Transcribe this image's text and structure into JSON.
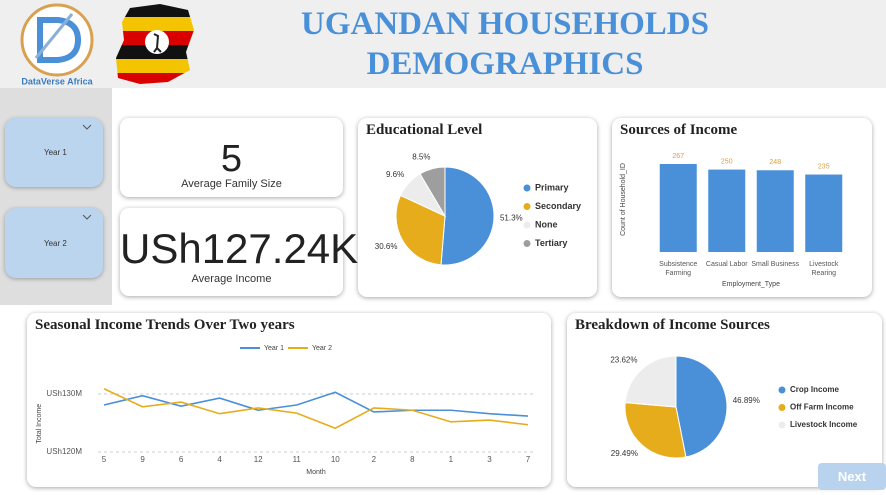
{
  "header": {
    "title": "UGANDAN HOUSEHOLDS DEMOGRAPHICS",
    "logo_text": "DataVerse Africa"
  },
  "slicers": [
    "Year 1",
    "Year 2"
  ],
  "kpis": [
    {
      "value": 5,
      "label": "Average Family Size"
    },
    {
      "value": "USh127.24K",
      "label": "Average Income"
    }
  ],
  "button": "Next",
  "chart_data": [
    {
      "type": "pie",
      "title": "Educational Level",
      "categories": [
        "Primary",
        "Secondary",
        "None",
        "Tertiary"
      ],
      "values": [
        51.3,
        30.6,
        9.6,
        8.5
      ],
      "value_labels": [
        "51.3%",
        "30.6%",
        "9.6%",
        "8.5%"
      ],
      "colors": [
        "#4a90d9",
        "#e6ac1c",
        "#ececec",
        "#9e9e9e"
      ],
      "legend": "right"
    },
    {
      "type": "bar",
      "title": "Sources of Income",
      "categories": [
        "Subsistence Farming",
        "Casual Labor",
        "Small Business",
        "Livestock Rearing"
      ],
      "values": [
        267,
        250,
        248,
        235
      ],
      "color": "#4a90d9",
      "label_color": "#d9a040",
      "xlabel": "Employment_Type",
      "ylabel": "Count of Household_ID",
      "ylim": [
        0,
        270
      ]
    },
    {
      "type": "line",
      "title": "Seasonal Income Trends Over Two years",
      "categories": [
        "5",
        "9",
        "6",
        "4",
        "12",
        "11",
        "10",
        "2",
        "8",
        "1",
        "3",
        "7"
      ],
      "series": [
        {
          "name": "Year 1",
          "color": "#4a90d9",
          "values": [
            128100000,
            129700000,
            127900000,
            129300000,
            127200000,
            128100000,
            130300000,
            126900000,
            127200000,
            127200000,
            126600000,
            126200000
          ]
        },
        {
          "name": "Year 2",
          "color": "#e6ac1c",
          "values": [
            130900000,
            127800000,
            128600000,
            126600000,
            127600000,
            126700000,
            124100000,
            127600000,
            127200000,
            125200000,
            125500000,
            124700000
          ]
        }
      ],
      "xlabel": "Month",
      "ylabel": "Total Income",
      "ylim": [
        120000000,
        132500000
      ],
      "yticks": [
        {
          "value": 120000000,
          "label": "USh120M"
        },
        {
          "value": 130000000,
          "label": "USh130M"
        }
      ],
      "grid": true,
      "legend": "top"
    },
    {
      "type": "pie",
      "title": "Breakdown of Income Sources",
      "categories": [
        "Crop Income",
        "Off Farm Income",
        "Livestock Income"
      ],
      "values": [
        46.89,
        29.49,
        23.62
      ],
      "value_labels": [
        "46.89%",
        "29.49%",
        "23.62%"
      ],
      "colors": [
        "#4a90d9",
        "#e6ac1c",
        "#ececec"
      ],
      "legend": "right"
    }
  ]
}
